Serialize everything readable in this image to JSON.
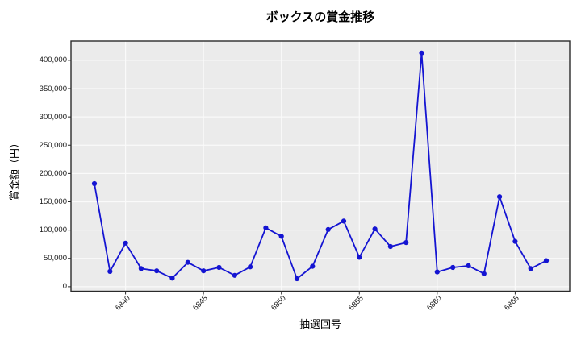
{
  "chart_data": {
    "type": "line",
    "title": "ボックスの賞金推移",
    "xlabel": "抽選回号",
    "ylabel": "賞金額（円）",
    "x": [
      6838,
      6839,
      6840,
      6841,
      6842,
      6843,
      6844,
      6845,
      6846,
      6847,
      6848,
      6849,
      6850,
      6851,
      6852,
      6853,
      6854,
      6855,
      6856,
      6857,
      6858,
      6859,
      6860,
      6861,
      6862,
      6863,
      6864,
      6865,
      6866,
      6867
    ],
    "values": [
      182000,
      27000,
      77000,
      32000,
      28000,
      15000,
      43000,
      28000,
      34000,
      20000,
      35000,
      104000,
      89000,
      14000,
      36000,
      101000,
      116000,
      52000,
      102000,
      71000,
      78000,
      413000,
      26000,
      34000,
      37000,
      23000,
      159000,
      80000,
      32000,
      46000
    ],
    "xticks": [
      6840,
      6845,
      6850,
      6855,
      6860,
      6865
    ],
    "xtick_labels": [
      "6840",
      "6845",
      "6850",
      "6855",
      "6860",
      "6865"
    ],
    "yticks": [
      0,
      50000,
      100000,
      150000,
      200000,
      250000,
      300000,
      350000,
      400000
    ],
    "ytick_labels": [
      "0",
      "50,000",
      "100,000",
      "150,000",
      "200,000",
      "250,000",
      "300,000",
      "350,000",
      "400,000"
    ],
    "xlim": [
      6836.5,
      6868.5
    ],
    "ylim": [
      -8000,
      434000
    ],
    "grid": true,
    "legend": null,
    "colors": {
      "line": "#1414d2",
      "marker": "#1414d2",
      "plot_background": "#ebebeb",
      "grid": "#fafafa",
      "spine": "#2a2a2a",
      "tick_label": "#1a1a1a"
    }
  }
}
